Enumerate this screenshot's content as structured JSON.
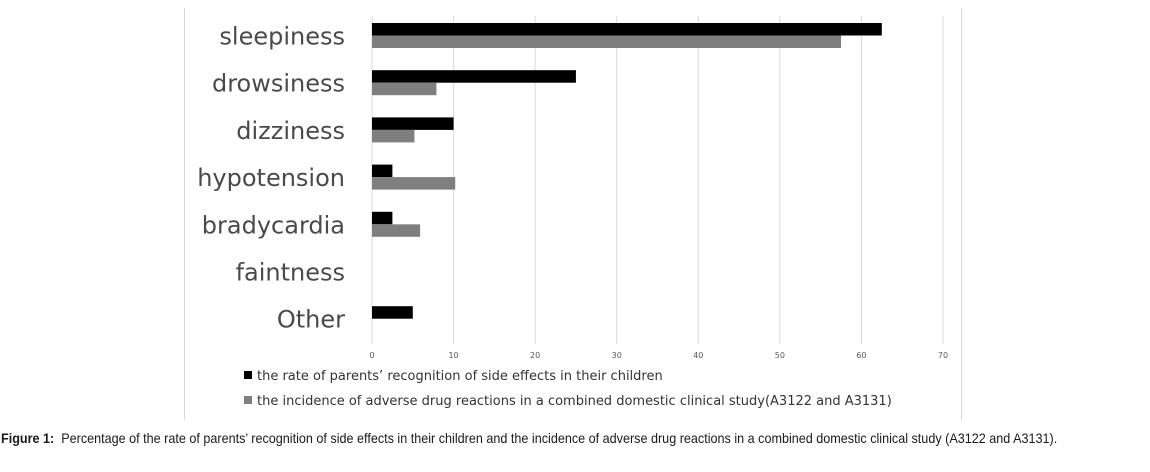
{
  "chart_data": {
    "type": "bar",
    "orientation": "horizontal",
    "categories": [
      "sleepiness",
      "drowsiness",
      "dizziness",
      "hypotension",
      "bradycardia",
      "faintness",
      "Other"
    ],
    "series": [
      {
        "name": "the rate of parents’ recognition of side effects in their children",
        "color": "#000000",
        "values": [
          62.5,
          25,
          10,
          2.5,
          2.5,
          0,
          5
        ]
      },
      {
        "name": "the incidence of adverse drug reactions in a combined  domestic clinical study(A3122 and A3131)",
        "color": "#7f7f7f",
        "values": [
          57.5,
          7.9,
          5.2,
          10.2,
          5.9,
          0,
          0
        ]
      }
    ],
    "xlim": [
      0,
      70
    ],
    "xticks": [
      "0",
      "10",
      "20",
      "30",
      "40",
      "50",
      "60",
      "70"
    ],
    "grid": true,
    "legend_position": "bottom"
  },
  "caption": {
    "label": "Figure 1:",
    "text": "Percentage of the rate of parents’ recognition of side effects in their children and the incidence of adverse drug reactions in a combined domestic clinical study (A3122 and A3131)."
  }
}
